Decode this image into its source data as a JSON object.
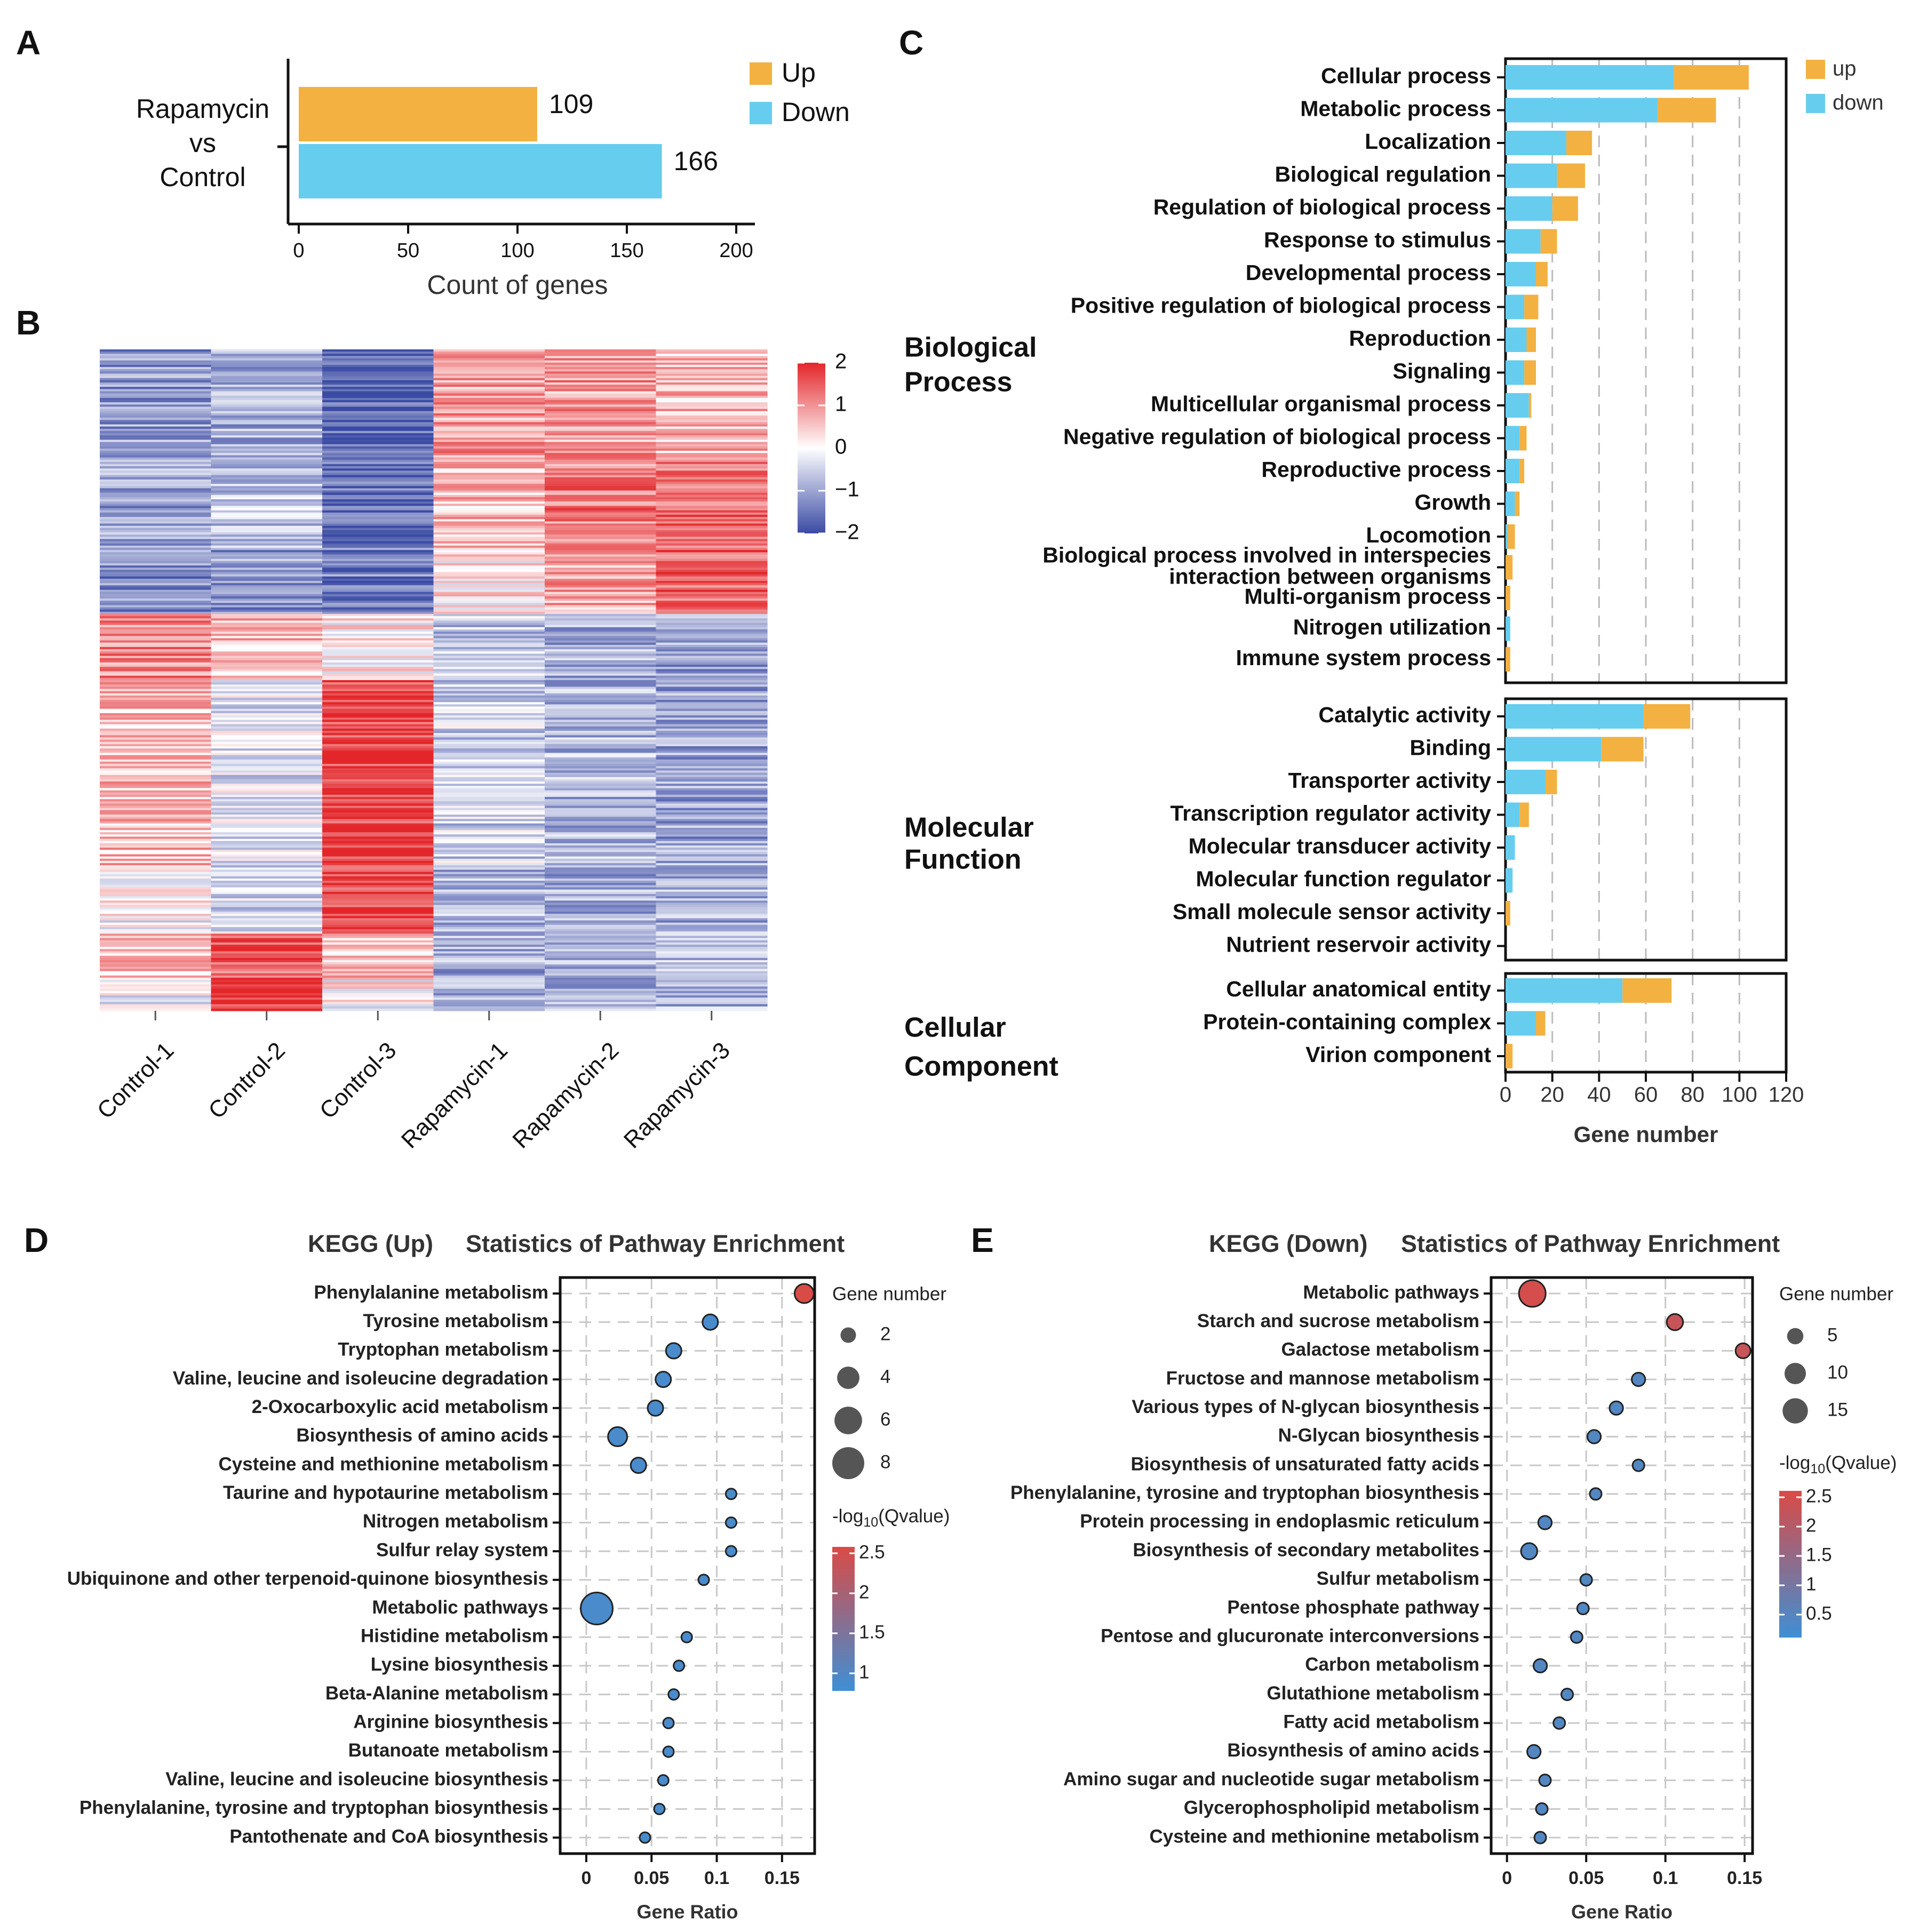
{
  "panels": {
    "A": "A",
    "B": "B",
    "C": "C",
    "D": "D",
    "E": "E"
  },
  "colors": {
    "up": "#F2B141",
    "down": "#66CDEE",
    "heat_low": "#3B4BA4",
    "heat_mid": "#FFFFFF",
    "heat_high": "#E3262A",
    "dot_high": "#D94B46",
    "dot_low": "#3F8FD4"
  },
  "chart_data": [
    {
      "id": "A",
      "type": "bar",
      "orientation": "horizontal",
      "category_label": [
        "Rapamycin",
        "vs",
        "Control"
      ],
      "series": [
        {
          "name": "Up",
          "values": [
            109
          ]
        },
        {
          "name": "Down",
          "values": [
            166
          ]
        }
      ],
      "xlabel": "Count of genes",
      "xlim": [
        0,
        200
      ],
      "xticks": [
        "0",
        "50",
        "100",
        "150",
        "200"
      ],
      "legend": [
        "Up",
        "Down"
      ],
      "legend_position": "top-right"
    },
    {
      "id": "B",
      "type": "heatmap",
      "columns": [
        "Control-1",
        "Control-2",
        "Control-3",
        "Rapamycin-1",
        "Rapamycin-2",
        "Rapamycin-3"
      ],
      "scale_min": -2,
      "scale_max": 2,
      "colorbar_ticks": [
        "2",
        "1",
        "0",
        "−1",
        "−2"
      ],
      "blocks": [
        {
          "rows": 100,
          "values": [
            -1.1,
            -0.9,
            -1.8,
            0.9,
            0.9,
            0.6
          ]
        },
        {
          "rows": 80,
          "values": [
            -1.0,
            -0.6,
            -1.6,
            0.6,
            1.2,
            1.4
          ]
        },
        {
          "rows": 60,
          "values": [
            -1.3,
            -1.1,
            -1.4,
            0.2,
            0.8,
            1.5
          ]
        },
        {
          "rows": 60,
          "values": [
            1.1,
            0.6,
            0.2,
            -0.6,
            -0.9,
            -1.0
          ]
        },
        {
          "rows": 170,
          "values": [
            0.6,
            -0.3,
            1.8,
            -0.5,
            -0.8,
            -1.0
          ]
        },
        {
          "rows": 60,
          "values": [
            0.0,
            -0.4,
            1.8,
            -0.8,
            -0.9,
            -0.9
          ]
        },
        {
          "rows": 40,
          "values": [
            0.5,
            1.5,
            0.5,
            -0.9,
            -0.8,
            -0.7
          ]
        },
        {
          "rows": 30,
          "values": [
            -0.2,
            1.9,
            0.1,
            -0.9,
            -0.8,
            -0.8
          ]
        }
      ]
    },
    {
      "id": "C",
      "type": "bar",
      "orientation": "horizontal",
      "stacked": true,
      "xlabel": "Gene number",
      "xlim": [
        0,
        120
      ],
      "xticks": [
        "0",
        "20",
        "40",
        "60",
        "80",
        "100",
        "120"
      ],
      "legend": [
        "up",
        "down"
      ],
      "legend_position": "top-right",
      "groups": [
        {
          "name": [
            "Biological",
            "Process"
          ],
          "categories": [
            [
              "Cellular process"
            ],
            [
              "Metabolic process"
            ],
            [
              "Localization"
            ],
            [
              "Biological regulation"
            ],
            [
              "Regulation of biological process"
            ],
            [
              "Response to stimulus"
            ],
            [
              "Developmental process"
            ],
            [
              "Positive regulation of biological process"
            ],
            [
              "Reproduction"
            ],
            [
              "Signaling"
            ],
            [
              "Multicellular organismal process"
            ],
            [
              "Negative regulation of biological process"
            ],
            [
              "Reproductive process"
            ],
            [
              "Growth"
            ],
            [
              "Locomotion"
            ],
            [
              "Biological process involved in interspecies",
              "interaction between organisms"
            ],
            [
              "Multi-organism process"
            ],
            [
              "Nitrogen utilization"
            ],
            [
              "Immune system process"
            ]
          ],
          "down": [
            72,
            65,
            26,
            22,
            20,
            15,
            13,
            8,
            9,
            8,
            10,
            6,
            6,
            4,
            1,
            0,
            0,
            2,
            0
          ],
          "up": [
            32,
            25,
            11,
            12,
            11,
            7,
            5,
            6,
            4,
            5,
            1,
            3,
            2,
            2,
            3,
            3,
            2,
            0,
            2
          ]
        },
        {
          "name": [
            "Molecular",
            "Function"
          ],
          "categories": [
            [
              "Catalytic activity"
            ],
            [
              "Binding"
            ],
            [
              "Transporter activity"
            ],
            [
              "Transcription regulator activity"
            ],
            [
              "Molecular transducer activity"
            ],
            [
              "Molecular function regulator"
            ],
            [
              "Small molecule sensor activity"
            ],
            [
              "Nutrient reservoir activity"
            ]
          ],
          "down": [
            59,
            41,
            17,
            6,
            4,
            3,
            0,
            0
          ],
          "up": [
            20,
            18,
            5,
            4,
            0,
            0,
            2,
            0
          ]
        },
        {
          "name": [
            "Cellular",
            "Component"
          ],
          "categories": [
            [
              "Cellular anatomical entity"
            ],
            [
              "Protein-containing complex"
            ],
            [
              "Virion component"
            ]
          ],
          "down": [
            50,
            13,
            0
          ],
          "up": [
            21,
            4,
            3
          ]
        }
      ]
    },
    {
      "id": "D",
      "type": "scatter",
      "title": [
        "KEGG (Up)",
        "Statistics of Pathway Enrichment"
      ],
      "xlabel": "Gene Ratio",
      "xlim": [
        -0.02,
        0.175
      ],
      "xticks": [
        0,
        0.05,
        0.1,
        0.15
      ],
      "xtick_labels": [
        "0",
        "0.05",
        "0.1",
        "0.15"
      ],
      "size_legend_title": "Gene number",
      "size_legend": [
        2,
        4,
        6,
        8
      ],
      "color_legend_title": "-log10(Qvalue)",
      "color_ticks": [
        "2.5",
        "2",
        "1.5",
        "1"
      ],
      "color_range": [
        0.9,
        2.5
      ],
      "size_range": [
        1,
        8
      ],
      "points": [
        {
          "name": "Phenylalanine metabolism",
          "x": 0.167,
          "size": 3,
          "q": 2.5
        },
        {
          "name": "Tyrosine metabolism",
          "x": 0.095,
          "size": 2,
          "q": 1.0
        },
        {
          "name": "Tryptophan metabolism",
          "x": 0.067,
          "size": 2,
          "q": 1.0
        },
        {
          "name": "Valine, leucine and isoleucine degradation",
          "x": 0.059,
          "size": 2,
          "q": 1.0
        },
        {
          "name": "2-Oxocarboxylic acid metabolism",
          "x": 0.053,
          "size": 2,
          "q": 1.0
        },
        {
          "name": "Biosynthesis of amino acids",
          "x": 0.024,
          "size": 3,
          "q": 1.0
        },
        {
          "name": "Cysteine and methionine metabolism",
          "x": 0.04,
          "size": 2,
          "q": 1.0
        },
        {
          "name": "Taurine and hypotaurine metabolism",
          "x": 0.111,
          "size": 1,
          "q": 1.0
        },
        {
          "name": "Nitrogen metabolism",
          "x": 0.111,
          "size": 1,
          "q": 1.0
        },
        {
          "name": "Sulfur relay system",
          "x": 0.111,
          "size": 1,
          "q": 1.0
        },
        {
          "name": "Ubiquinone and other terpenoid-quinone biosynthesis",
          "x": 0.09,
          "size": 1,
          "q": 1.0
        },
        {
          "name": "Metabolic pathways",
          "x": 0.008,
          "size": 8,
          "q": 1.0
        },
        {
          "name": "Histidine metabolism",
          "x": 0.077,
          "size": 1,
          "q": 1.0
        },
        {
          "name": "Lysine biosynthesis",
          "x": 0.071,
          "size": 1,
          "q": 1.0
        },
        {
          "name": "Beta-Alanine metabolism",
          "x": 0.067,
          "size": 1,
          "q": 1.0
        },
        {
          "name": "Arginine biosynthesis",
          "x": 0.063,
          "size": 1,
          "q": 1.0
        },
        {
          "name": "Butanoate metabolism",
          "x": 0.063,
          "size": 1,
          "q": 1.0
        },
        {
          "name": "Valine, leucine and isoleucine biosynthesis",
          "x": 0.059,
          "size": 1,
          "q": 1.0
        },
        {
          "name": "Phenylalanine, tyrosine and tryptophan biosynthesis",
          "x": 0.056,
          "size": 1,
          "q": 1.0
        },
        {
          "name": "Pantothenate and CoA biosynthesis",
          "x": 0.045,
          "size": 1,
          "q": 1.0
        }
      ]
    },
    {
      "id": "E",
      "type": "scatter",
      "title": [
        "KEGG (Down)",
        "Statistics of Pathway Enrichment"
      ],
      "xlabel": "Gene Ratio",
      "xlim": [
        -0.01,
        0.155
      ],
      "xticks": [
        0,
        0.05,
        0.1,
        0.15
      ],
      "xtick_labels": [
        "0",
        "0.05",
        "0.1",
        "0.15"
      ],
      "size_legend_title": "Gene number",
      "size_legend": [
        5,
        10,
        15
      ],
      "color_legend_title": "-log10(Qvalue)",
      "color_ticks": [
        "2.5",
        "2",
        "1.5",
        "1",
        "0.5"
      ],
      "color_range": [
        0.3,
        2.7
      ],
      "size_range": [
        2,
        17
      ],
      "points": [
        {
          "name": "Metabolic pathways",
          "x": 0.016,
          "size": 17,
          "q": 2.6
        },
        {
          "name": "Starch and sucrose metabolism",
          "x": 0.106,
          "size": 5,
          "q": 2.4
        },
        {
          "name": "Galactose metabolism",
          "x": 0.149,
          "size": 4,
          "q": 2.4
        },
        {
          "name": "Fructose and mannose metabolism",
          "x": 0.083,
          "size": 3,
          "q": 0.6
        },
        {
          "name": "Various types of N-glycan biosynthesis",
          "x": 0.069,
          "size": 3,
          "q": 0.6
        },
        {
          "name": "N-Glycan biosynthesis",
          "x": 0.055,
          "size": 3,
          "q": 0.6
        },
        {
          "name": "Biosynthesis of unsaturated fatty acids",
          "x": 0.083,
          "size": 2,
          "q": 0.6
        },
        {
          "name": "Phenylalanine, tyrosine and tryptophan biosynthesis",
          "x": 0.056,
          "size": 2,
          "q": 0.6
        },
        {
          "name": "Protein processing in endoplasmic reticulum",
          "x": 0.024,
          "size": 3,
          "q": 0.6
        },
        {
          "name": "Biosynthesis of secondary metabolites",
          "x": 0.014,
          "size": 5,
          "q": 0.6
        },
        {
          "name": "Sulfur metabolism",
          "x": 0.05,
          "size": 2,
          "q": 0.6
        },
        {
          "name": "Pentose phosphate pathway",
          "x": 0.048,
          "size": 2,
          "q": 0.6
        },
        {
          "name": "Pentose and glucuronate interconversions",
          "x": 0.044,
          "size": 2,
          "q": 0.6
        },
        {
          "name": "Carbon metabolism",
          "x": 0.021,
          "size": 3,
          "q": 0.6
        },
        {
          "name": "Glutathione metabolism",
          "x": 0.038,
          "size": 2,
          "q": 0.6
        },
        {
          "name": "Fatty acid metabolism",
          "x": 0.033,
          "size": 2,
          "q": 0.6
        },
        {
          "name": "Biosynthesis of amino acids",
          "x": 0.017,
          "size": 3,
          "q": 0.6
        },
        {
          "name": "Amino sugar and nucleotide sugar metabolism",
          "x": 0.024,
          "size": 2,
          "q": 0.6
        },
        {
          "name": "Glycerophospholipid metabolism",
          "x": 0.022,
          "size": 2,
          "q": 0.6
        },
        {
          "name": "Cysteine and methionine metabolism",
          "x": 0.021,
          "size": 2,
          "q": 0.6
        }
      ]
    }
  ]
}
